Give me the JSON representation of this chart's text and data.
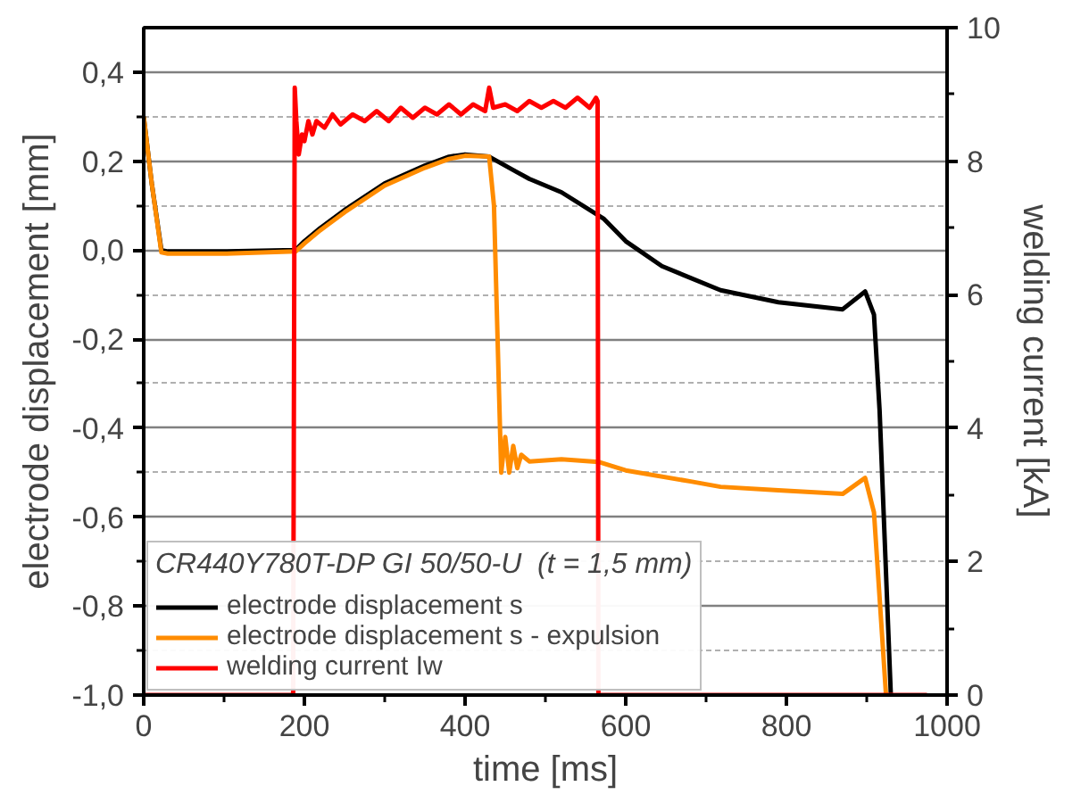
{
  "chart_data": {
    "type": "line",
    "xlabel": "time [ms]",
    "ylabel": "electrode displacement [mm]",
    "y2label": "welding current [kA]",
    "legend_title": "CR440Y780T-DP GI 50/50-U  (t = 1,5 mm)",
    "xlim": [
      0,
      1000
    ],
    "ylim": [
      -1.0,
      0.5
    ],
    "y2lim": [
      0,
      10
    ],
    "xticks": [
      0,
      {
        "value": 100,
        "label": null
      },
      200,
      {
        "value": 300,
        "label": null
      },
      400,
      {
        "value": 500,
        "label": null
      },
      600,
      {
        "value": 700,
        "label": null
      },
      800,
      {
        "value": 900,
        "label": null
      },
      1000
    ],
    "yticks": [
      {
        "value": 0.4,
        "label": "0,4"
      },
      {
        "value": 0.3,
        "label": null
      },
      {
        "value": 0.2,
        "label": "0,2"
      },
      {
        "value": 0.1,
        "label": null
      },
      {
        "value": 0.0,
        "label": "0,0"
      },
      {
        "value": -0.1,
        "label": null
      },
      {
        "value": -0.2,
        "label": "-0,2"
      },
      {
        "value": -0.3,
        "label": null
      },
      {
        "value": -0.4,
        "label": "-0,4"
      },
      {
        "value": -0.5,
        "label": null
      },
      {
        "value": -0.6,
        "label": "-0,6"
      },
      {
        "value": -0.7,
        "label": null
      },
      {
        "value": -0.8,
        "label": "-0,8"
      },
      {
        "value": -0.9,
        "label": null
      },
      {
        "value": -1.0,
        "label": "-1,0"
      }
    ],
    "y2ticks": [
      0,
      {
        "value": 1,
        "label": null
      },
      2,
      {
        "value": 3,
        "label": null
      },
      4,
      {
        "value": 5,
        "label": null
      },
      6,
      {
        "value": 7,
        "label": null
      },
      8,
      {
        "value": 9,
        "label": null
      },
      10
    ],
    "grid": "y",
    "legend": "bottom left",
    "line_style": "solid",
    "marker": "none",
    "series": [
      {
        "name": "electrode displacement s",
        "color": "#000000",
        "x": [
          0,
          10,
          22,
          30,
          100,
          189,
          200,
          220,
          250,
          300,
          350,
          380,
          400,
          430,
          450,
          463,
          480,
          520,
          573,
          600,
          645,
          718,
          790,
          870,
          898,
          909,
          916,
          930
        ],
        "values": [
          0.3,
          0.15,
          0.0,
          -0.003,
          -0.003,
          0.0,
          0.02,
          0.05,
          0.09,
          0.15,
          0.19,
          0.21,
          0.215,
          0.21,
          0.19,
          0.177,
          0.16,
          0.13,
          0.07,
          0.02,
          -0.036,
          -0.09,
          -0.117,
          -0.133,
          -0.093,
          -0.145,
          -0.36,
          -1.0
        ]
      },
      {
        "name": "electrode displacement s - expulsion",
        "color": "#ff8c00",
        "x": [
          0,
          10,
          22,
          30,
          100,
          189,
          200,
          220,
          250,
          300,
          350,
          380,
          400,
          430,
          436,
          445,
          450,
          455,
          460,
          465,
          470,
          480,
          520,
          566,
          600,
          681,
          718,
          790,
          870,
          898,
          909,
          924
        ],
        "values": [
          0.3,
          0.15,
          -0.005,
          -0.008,
          -0.008,
          -0.003,
          0.015,
          0.045,
          0.085,
          0.145,
          0.185,
          0.205,
          0.212,
          0.21,
          0.1,
          -0.5,
          -0.42,
          -0.5,
          -0.44,
          -0.49,
          -0.46,
          -0.475,
          -0.47,
          -0.476,
          -0.495,
          -0.52,
          -0.532,
          -0.54,
          -0.548,
          -0.512,
          -0.589,
          -1.0
        ]
      },
      {
        "name": "welding current Iw",
        "color": "#ff0000",
        "axis": "y2",
        "x": [
          0,
          186,
          188,
          190,
          193,
          197,
          200,
          205,
          210,
          215,
          225,
          235,
          245,
          260,
          275,
          290,
          305,
          320,
          335,
          350,
          365,
          380,
          395,
          410,
          425,
          430,
          435,
          450,
          465,
          480,
          495,
          510,
          525,
          540,
          555,
          563,
          565,
          566,
          975
        ],
        "values": [
          0,
          0,
          9.1,
          8.6,
          8.1,
          8.4,
          8.3,
          8.6,
          8.4,
          8.6,
          8.5,
          8.7,
          8.55,
          8.7,
          8.6,
          8.75,
          8.6,
          8.8,
          8.65,
          8.8,
          8.7,
          8.85,
          8.7,
          8.85,
          8.75,
          9.1,
          8.8,
          8.85,
          8.75,
          8.9,
          8.8,
          8.9,
          8.8,
          8.95,
          8.8,
          8.95,
          8.9,
          0,
          0
        ]
      }
    ]
  }
}
